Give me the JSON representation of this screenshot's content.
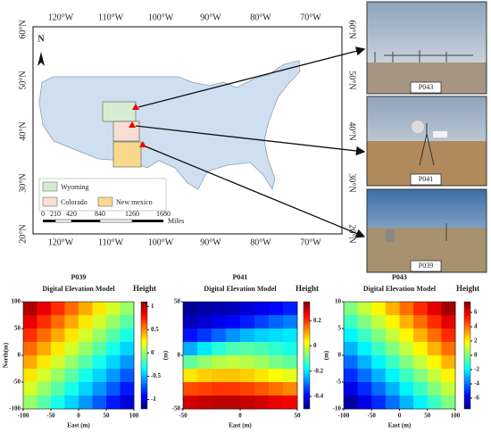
{
  "map": {
    "lon_labels": [
      "120°W",
      "110°W",
      "100°W",
      "90°W",
      "80°W",
      "70°W"
    ],
    "lat_labels": [
      "60°N",
      "50°N",
      "40°N",
      "30°N",
      "20°N"
    ],
    "north": "N",
    "legend": [
      "Wyoming",
      "Colorado",
      "New mexico"
    ],
    "scale_labels": [
      "0",
      "210",
      "420",
      "840",
      "1260",
      "1680"
    ],
    "scale_unit": "Miles"
  },
  "photos": [
    {
      "label": "P043"
    },
    {
      "label": "P041"
    },
    {
      "label": "P039"
    }
  ],
  "chart_data": [
    {
      "type": "heatmap",
      "title": "P039",
      "subtitle": "Digital Elevation Model",
      "xlabel": "East (m)",
      "ylabel": "North(m)",
      "colorbar_label": "Height",
      "xlim": [
        -100,
        100
      ],
      "ylim": [
        -100,
        100
      ],
      "xticks": [
        -100,
        -50,
        0,
        50,
        100
      ],
      "yticks": [
        -100,
        -50,
        0,
        50,
        100
      ],
      "clim": [
        -1.2,
        1.1
      ],
      "cticks": [
        -1,
        -0.5,
        0,
        0.5,
        1
      ],
      "values": [
        [
          1,
          0.86,
          0.71,
          0.57,
          0.43,
          0.29,
          0.14,
          0
        ],
        [
          0.86,
          0.71,
          0.57,
          0.43,
          0.29,
          0.14,
          0,
          -0.14
        ],
        [
          0.71,
          0.57,
          0.43,
          0.29,
          0.14,
          0,
          -0.14,
          -0.29
        ],
        [
          0.57,
          0.43,
          0.29,
          0.14,
          0,
          -0.14,
          -0.29,
          -0.43
        ],
        [
          0.43,
          0.29,
          0.14,
          0,
          -0.14,
          -0.29,
          -0.43,
          -0.57
        ],
        [
          0.29,
          0.14,
          0,
          -0.14,
          -0.29,
          -0.43,
          -0.57,
          -0.71
        ],
        [
          0.14,
          0,
          -0.14,
          -0.29,
          -0.43,
          -0.57,
          -0.71,
          -0.86
        ],
        [
          0,
          -0.14,
          -0.29,
          -0.43,
          -0.57,
          -0.71,
          -0.86,
          -1
        ]
      ]
    },
    {
      "type": "heatmap",
      "title": "P041",
      "subtitle": "Digital Elevation Model",
      "xlabel": "East (m)",
      "ylabel": "(m)",
      "colorbar_label": "Height",
      "xlim": [
        -50,
        50
      ],
      "ylim": [
        -50,
        50
      ],
      "xticks": [
        -50,
        0,
        50
      ],
      "yticks": [
        -50,
        0,
        50
      ],
      "clim": [
        -0.5,
        0.35
      ],
      "cticks": [
        -0.4,
        -0.2,
        0,
        0.2
      ],
      "values": [
        [
          -0.48,
          -0.47,
          -0.46,
          -0.45,
          -0.43,
          -0.41,
          -0.39,
          -0.37
        ],
        [
          -0.45,
          -0.43,
          -0.41,
          -0.39,
          -0.37,
          -0.34,
          -0.31,
          -0.29
        ],
        [
          -0.38,
          -0.35,
          -0.31,
          -0.27,
          -0.24,
          -0.22,
          -0.21,
          -0.2
        ],
        [
          -0.25,
          -0.2,
          -0.15,
          -0.12,
          -0.11,
          -0.12,
          -0.14,
          -0.16
        ],
        [
          -0.1,
          -0.06,
          -0.03,
          -0.02,
          -0.03,
          -0.05,
          -0.08,
          -0.1
        ],
        [
          0.05,
          0.07,
          0.08,
          0.08,
          0.07,
          0.05,
          0.03,
          0.01
        ],
        [
          0.18,
          0.19,
          0.2,
          0.2,
          0.19,
          0.17,
          0.15,
          0.13
        ],
        [
          0.28,
          0.29,
          0.3,
          0.3,
          0.29,
          0.28,
          0.26,
          0.25
        ]
      ]
    },
    {
      "type": "heatmap",
      "title": "P043",
      "subtitle": "Digital Elevation Model",
      "xlabel": "East (m)",
      "ylabel": "(m)",
      "colorbar_label": "Height",
      "xlim": [
        -100,
        100
      ],
      "ylim": [
        -10,
        10
      ],
      "xticks": [
        -100,
        -50,
        0,
        50,
        100
      ],
      "yticks": [
        -10,
        -5,
        0,
        5,
        10
      ],
      "clim": [
        -7.5,
        7.5
      ],
      "cticks": [
        -6,
        -4,
        -2,
        0,
        2,
        4,
        6
      ],
      "values": [
        [
          0,
          1,
          2,
          3,
          4,
          5,
          6,
          7
        ],
        [
          -1,
          0,
          1,
          2,
          3,
          4,
          5,
          6
        ],
        [
          -2,
          -1,
          0,
          1,
          2,
          3,
          4,
          5
        ],
        [
          -3,
          -2,
          -1,
          0,
          1,
          2,
          3,
          4
        ],
        [
          -4,
          -3,
          -2,
          -1,
          0,
          1,
          2,
          3
        ],
        [
          -5,
          -4,
          -3,
          -2,
          -1,
          0,
          1,
          2
        ],
        [
          -6,
          -5,
          -4,
          -3,
          -2,
          -1,
          0,
          1
        ],
        [
          -7,
          -6,
          -5,
          -4,
          -3,
          -2,
          -1,
          0
        ]
      ]
    }
  ]
}
